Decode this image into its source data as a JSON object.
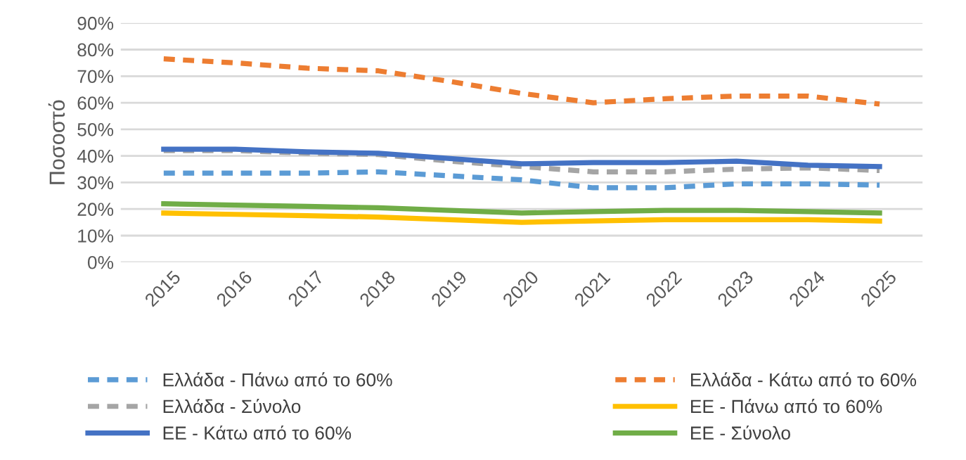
{
  "chart_data": {
    "type": "line",
    "ylabel": "Ποσοστό",
    "categories": [
      "2015",
      "2016",
      "2017",
      "2018",
      "2019",
      "2020",
      "2021",
      "2022",
      "2023",
      "2024",
      "2025"
    ],
    "series": [
      {
        "name": "Ελλάδα - Πάνω από το 60%",
        "color": "#5b9bd5",
        "line_style": "dashed",
        "values": [
          33.5,
          33.5,
          33.5,
          34,
          32.5,
          31,
          28,
          28,
          29.5,
          29.5,
          29
        ]
      },
      {
        "name": "Ελλάδα - Κάτω από το 60%",
        "color": "#ed7d31",
        "line_style": "dashed",
        "values": [
          76.5,
          75,
          73,
          72,
          68,
          63.5,
          60,
          61.5,
          62.5,
          62.5,
          59.5
        ]
      },
      {
        "name": "Ελλάδα - Σύνολο",
        "color": "#a5a5a5",
        "line_style": "dashed",
        "values": [
          42,
          42,
          41,
          40.5,
          38,
          36,
          34,
          34,
          35,
          35.5,
          34.5
        ]
      },
      {
        "name": "ΕΕ - Πάνω από το 60%",
        "color": "#ffc000",
        "line_style": "solid",
        "values": [
          18.5,
          18,
          17.5,
          17,
          16,
          15,
          15.5,
          16,
          16,
          16,
          15.5
        ]
      },
      {
        "name": "ΕΕ - Κάτω από το 60%",
        "color": "#4472c4",
        "line_style": "solid",
        "values": [
          42.5,
          42.5,
          41.5,
          41,
          39,
          37,
          37.5,
          37.5,
          38,
          36.5,
          36
        ]
      },
      {
        "name": "ΕΕ - Σύνολο",
        "color": "#70ad47",
        "line_style": "solid",
        "values": [
          22,
          21.5,
          21,
          20.5,
          19.5,
          18.5,
          19,
          19.5,
          19.5,
          19,
          18.5
        ]
      }
    ],
    "ylim": [
      0,
      90
    ],
    "yticks": [
      {
        "value": 0,
        "label": "0%"
      },
      {
        "value": 10,
        "label": "10%"
      },
      {
        "value": 20,
        "label": "20%"
      },
      {
        "value": 30,
        "label": "30%"
      },
      {
        "value": 40,
        "label": "40%"
      },
      {
        "value": 50,
        "label": "50%"
      },
      {
        "value": 60,
        "label": "60%"
      },
      {
        "value": 70,
        "label": "70%"
      },
      {
        "value": 80,
        "label": "80%"
      },
      {
        "value": 90,
        "label": "90%"
      }
    ],
    "grid": "y",
    "legend": "bottom",
    "marker": "none"
  }
}
